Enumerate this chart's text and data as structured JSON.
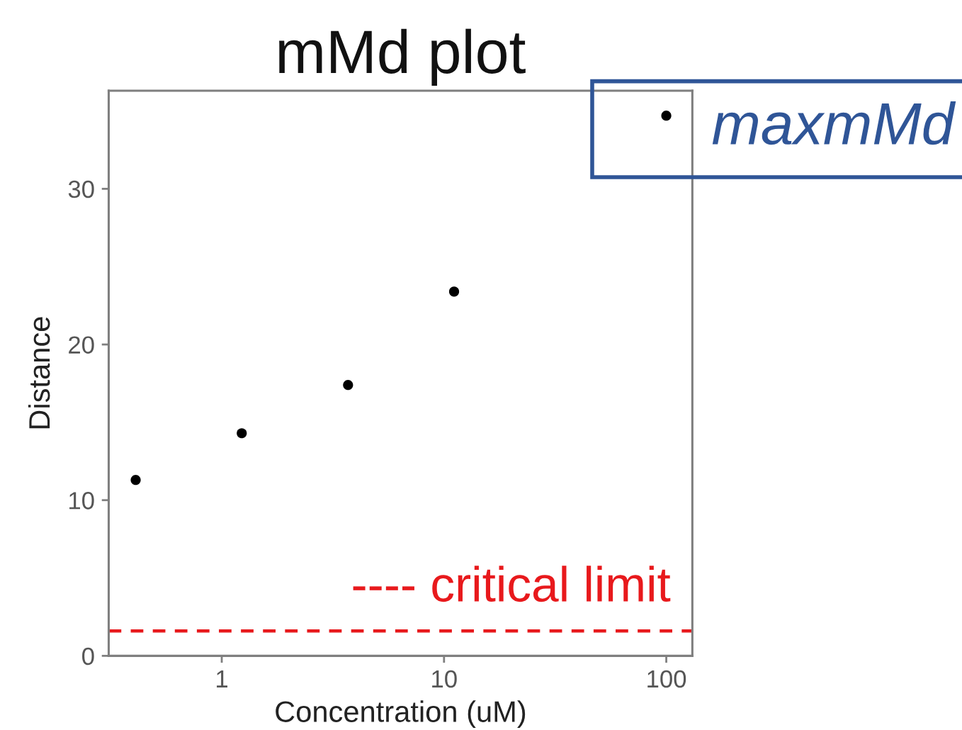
{
  "chart_data": {
    "type": "scatter",
    "title": "mMd plot",
    "xlabel": "Concentration (uM)",
    "ylabel": "Distance",
    "x": [
      0.41,
      1.23,
      3.7,
      11.1,
      100
    ],
    "values": [
      11.3,
      14.3,
      17.4,
      23.4,
      34.7
    ],
    "color": "#000000",
    "marker": "circle",
    "log": "x",
    "xlim": [
      0.31,
      131
    ],
    "xticks": [
      1,
      10,
      100
    ],
    "ylim": [
      0,
      36.3
    ],
    "yticks": [
      0,
      10,
      20,
      30
    ],
    "ref_lines": [
      {
        "axis": "y",
        "value": 1.6,
        "label": "---- critical limit",
        "color": "#e8191c",
        "line_style": "dashed"
      }
    ],
    "annotations": [
      {
        "text": "maxmMd",
        "x": 100,
        "y": 34.7
      }
    ]
  }
}
